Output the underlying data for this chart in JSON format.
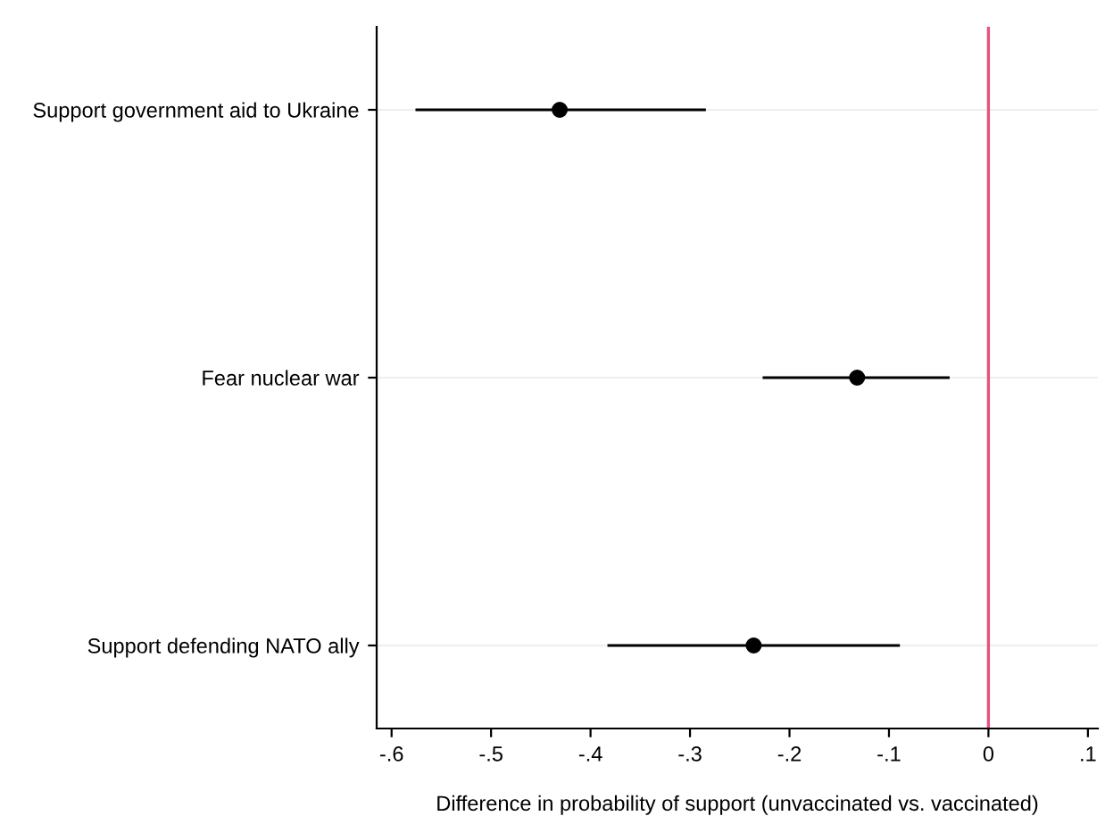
{
  "chart_data": {
    "type": "scatter",
    "orientation": "horizontal",
    "xlabel": "Difference in probability of support (unvaccinated vs. vaccinated)",
    "categories": [
      "Support government aid to Ukraine",
      "Fear nuclear war",
      "Support defending NATO ally"
    ],
    "values": [
      -0.431,
      -0.132,
      -0.236
    ],
    "errors": [
      [
        -0.576,
        -0.284
      ],
      [
        -0.227,
        -0.039
      ],
      [
        -0.383,
        -0.089
      ]
    ],
    "color": "#000000",
    "marker": "circle",
    "xlim": [
      -0.615,
      0.11
    ],
    "xticks": [
      {
        "value": -0.6,
        "label": "-.6"
      },
      {
        "value": -0.5,
        "label": "-.5"
      },
      {
        "value": -0.4,
        "label": "-.4"
      },
      {
        "value": -0.3,
        "label": "-.3"
      },
      {
        "value": -0.2,
        "label": "-.2"
      },
      {
        "value": -0.1,
        "label": "-.1"
      },
      {
        "value": 0,
        "label": "0"
      },
      {
        "value": 0.1,
        "label": ".1"
      }
    ],
    "ref_lines": [
      {
        "axis": "x",
        "value": 0,
        "color": "#e8527a"
      }
    ],
    "grid": "y"
  }
}
